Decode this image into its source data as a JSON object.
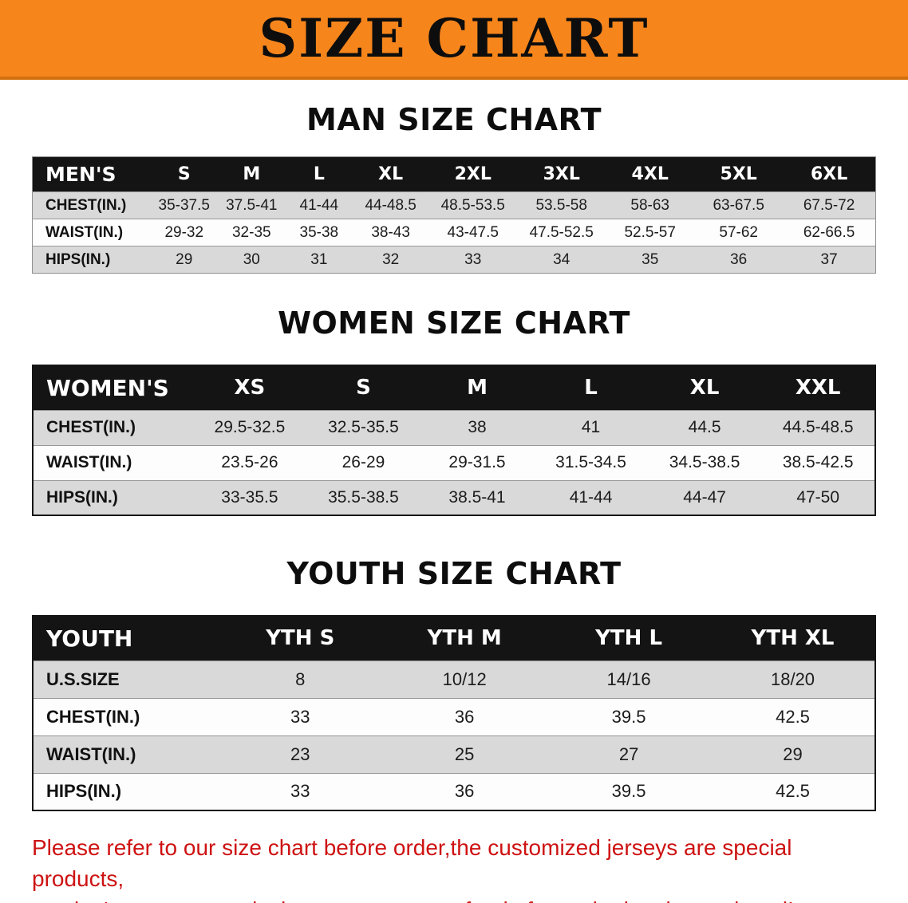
{
  "banner": {
    "title": "SIZE CHART"
  },
  "colors": {
    "banner_bg": "#f6851c",
    "table_header_bg": "#141414",
    "row_shaded": "#d9d9d9",
    "row_plain": "#fdfdfd",
    "disclaimer_red": "#ce1212"
  },
  "chart_data": [
    {
      "type": "table",
      "title": "MAN SIZE CHART",
      "columns": [
        "MEN'S",
        "S",
        "M",
        "L",
        "XL",
        "2XL",
        "3XL",
        "4XL",
        "5XL",
        "6XL"
      ],
      "rows": [
        [
          "CHEST(IN.)",
          "35-37.5",
          "37.5-41",
          "41-44",
          "44-48.5",
          "48.5-53.5",
          "53.5-58",
          "58-63",
          "63-67.5",
          "67.5-72"
        ],
        [
          "WAIST(IN.)",
          "29-32",
          "32-35",
          "35-38",
          "38-43",
          "43-47.5",
          "47.5-52.5",
          "52.5-57",
          "57-62",
          "62-66.5"
        ],
        [
          "HIPS(IN.)",
          "29",
          "30",
          "31",
          "32",
          "33",
          "34",
          "35",
          "36",
          "37"
        ]
      ]
    },
    {
      "type": "table",
      "title": "WOMEN SIZE CHART",
      "columns": [
        "WOMEN'S",
        "XS",
        "S",
        "M",
        "L",
        "XL",
        "XXL"
      ],
      "rows": [
        [
          "CHEST(IN.)",
          "29.5-32.5",
          "32.5-35.5",
          "38",
          "41",
          "44.5",
          "44.5-48.5"
        ],
        [
          "WAIST(IN.)",
          "23.5-26",
          "26-29",
          "29-31.5",
          "31.5-34.5",
          "34.5-38.5",
          "38.5-42.5"
        ],
        [
          "HIPS(IN.)",
          "33-35.5",
          "35.5-38.5",
          "38.5-41",
          "41-44",
          "44-47",
          "47-50"
        ]
      ]
    },
    {
      "type": "table",
      "title": "YOUTH SIZE CHART",
      "columns": [
        "YOUTH",
        "YTH S",
        "YTH M",
        "YTH L",
        "YTH XL"
      ],
      "rows": [
        [
          "U.S.SIZE",
          "8",
          "10/12",
          "14/16",
          "18/20"
        ],
        [
          "CHEST(IN.)",
          "33",
          "36",
          "39.5",
          "42.5"
        ],
        [
          "WAIST(IN.)",
          "23",
          "25",
          "27",
          "29"
        ],
        [
          "HIPS(IN.)",
          "33",
          "36",
          "39.5",
          "42.5"
        ]
      ]
    }
  ],
  "footer": {
    "line1": "Please refer to our size chart before order,the customized jerseys are special products,",
    "line2": "we don't accept cancel, change, teturn or refund after order has been placed!"
  }
}
